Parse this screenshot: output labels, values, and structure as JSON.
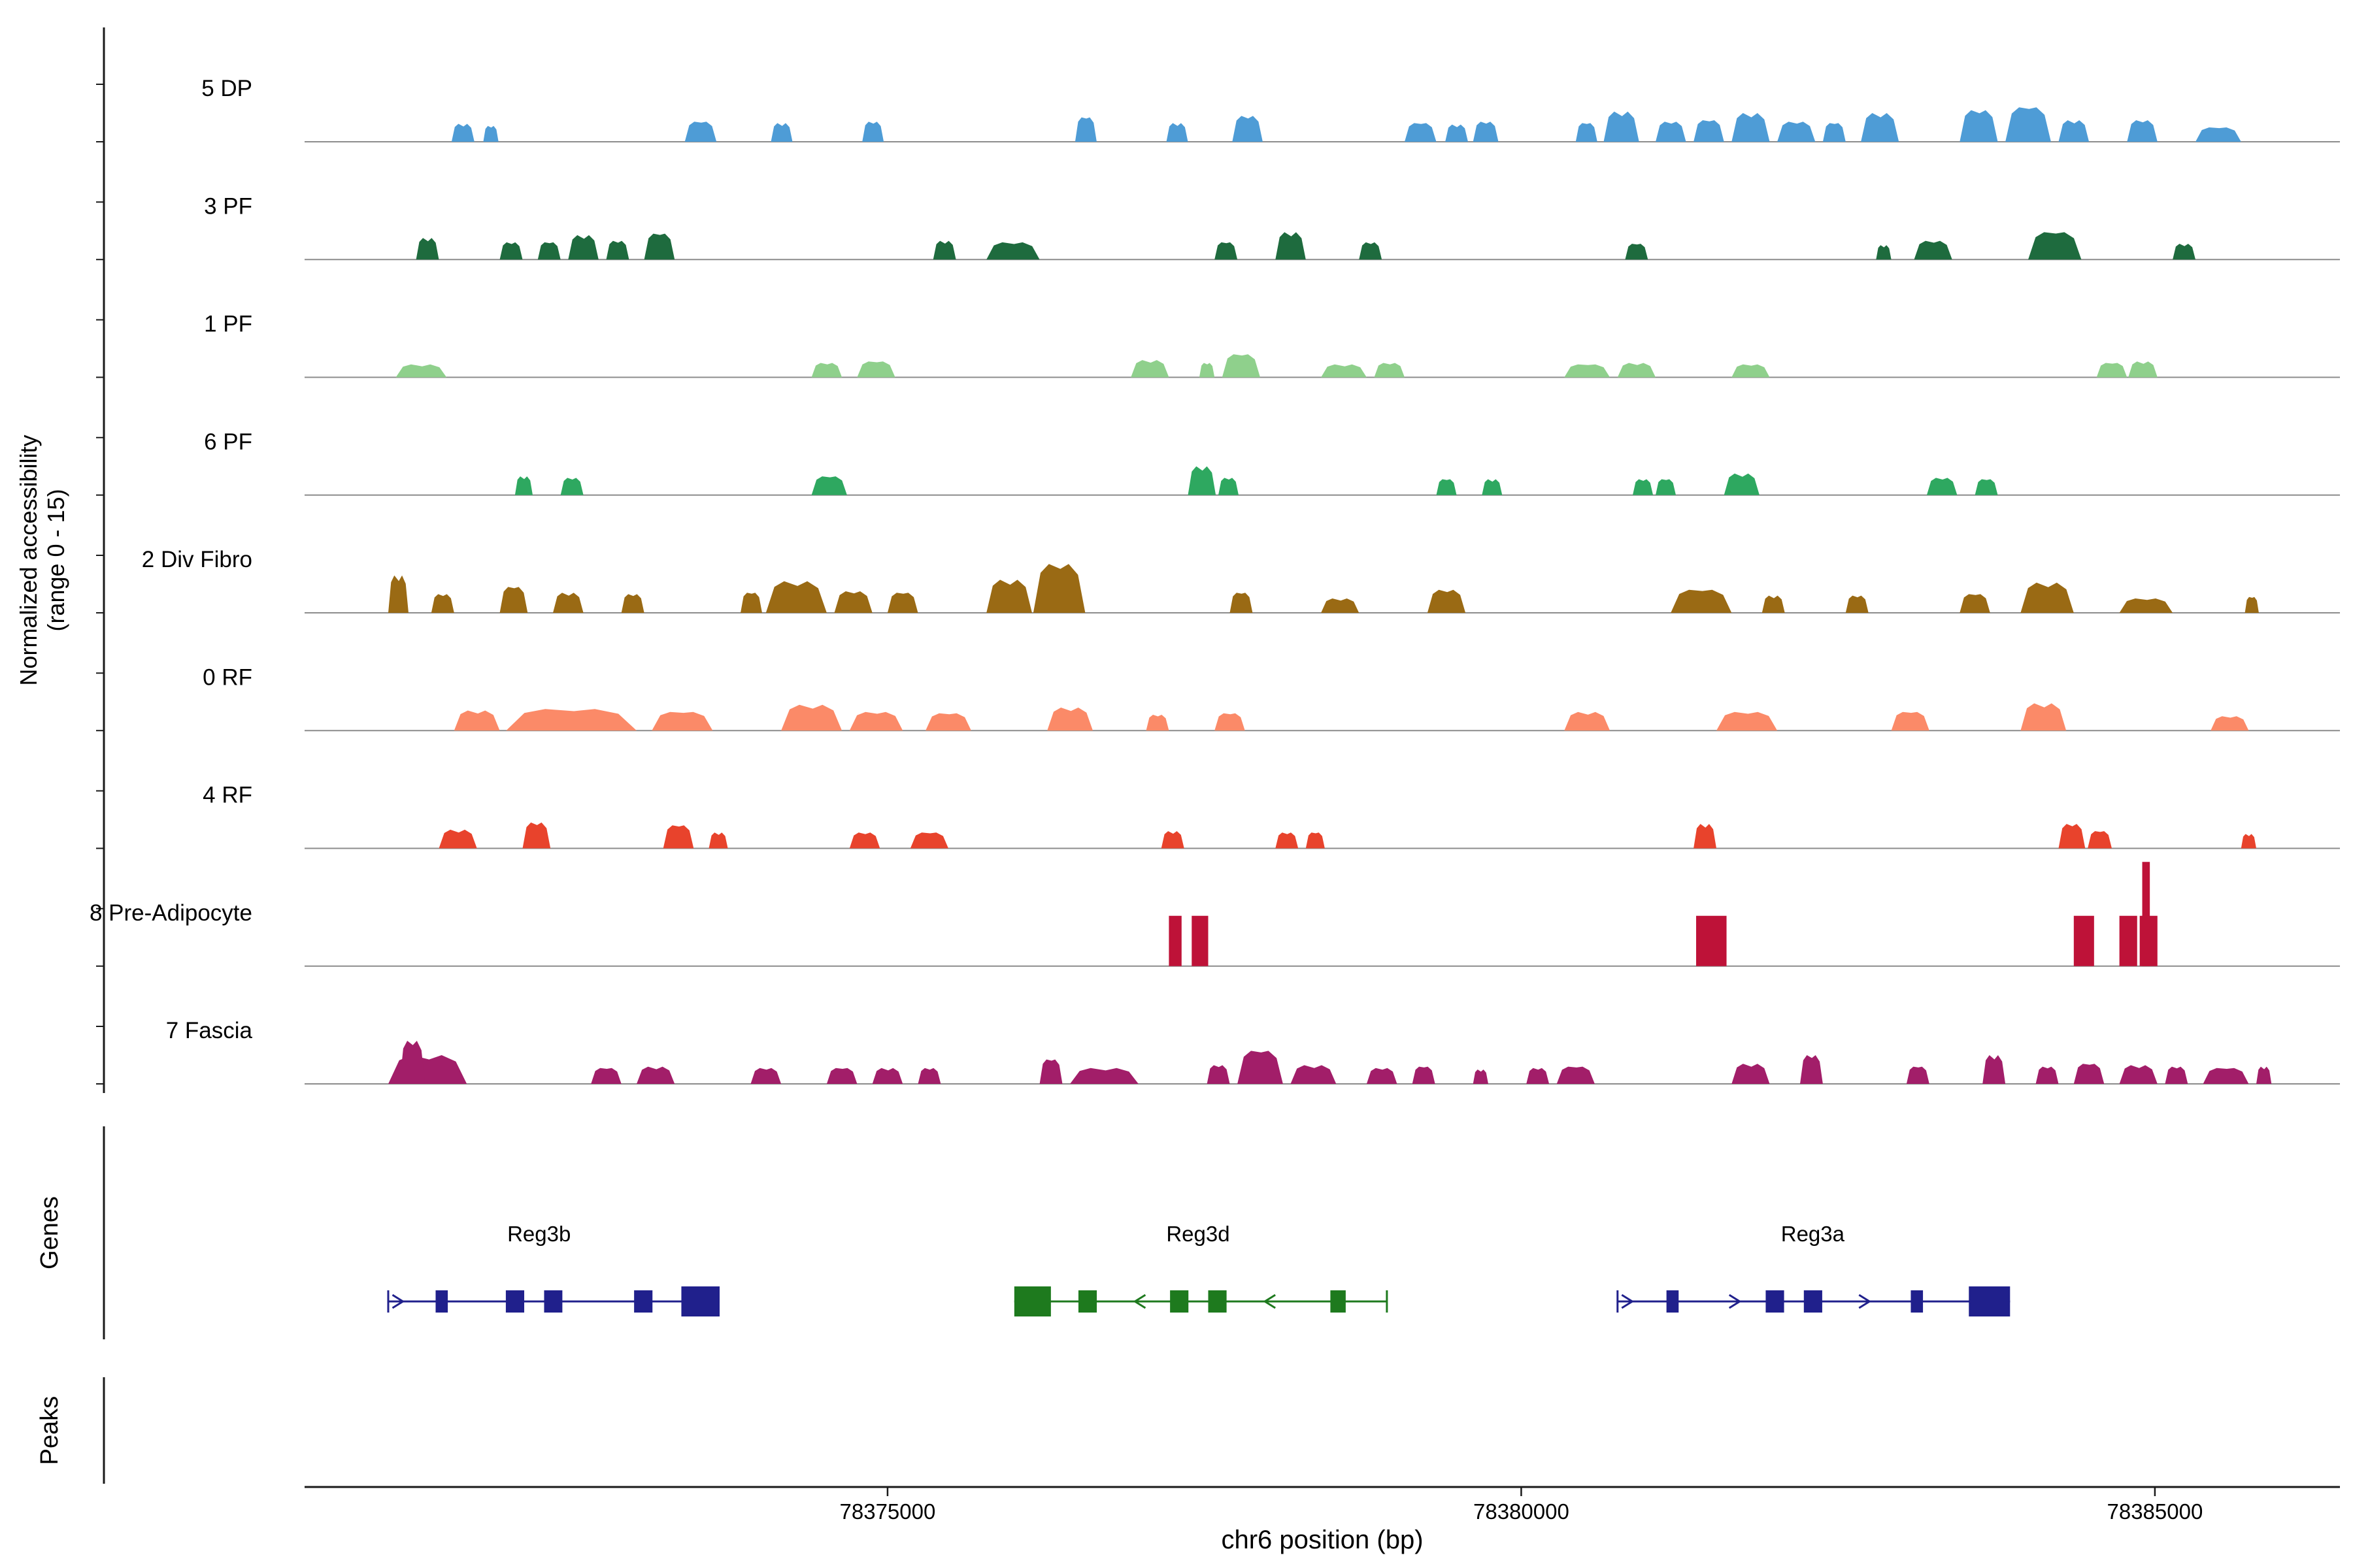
{
  "sections": {
    "accessibility": {
      "label_line1": "Normalized accessibility",
      "label_line2": "(range 0 - 15)"
    },
    "genes": {
      "label": "Genes"
    },
    "peaks": {
      "label": "Peaks"
    }
  },
  "axis": {
    "title": "chr6 position (bp)",
    "ticks": [
      {
        "bp": 78375000,
        "label": "78375000"
      },
      {
        "bp": 78380000,
        "label": "78380000"
      },
      {
        "bp": 78385000,
        "label": "78385000"
      }
    ]
  },
  "colors": {
    "baseline": "#8C8C8C",
    "axis": "#1A1A1A",
    "bracket": "#1A1A1A"
  },
  "chart_data": {
    "type": "area",
    "xlabel": "chr6 position (bp)",
    "xlim": [
      78370400,
      78386460
    ],
    "ylim_per_track": [
      0,
      15
    ],
    "x_ticks": [
      78375000,
      78380000,
      78385000
    ],
    "tracks": [
      {
        "name": "5 DP",
        "color": "#4E9CD6",
        "shape": "mound",
        "segments": [
          [
            78371560,
            78371740,
            2.5
          ],
          [
            78371810,
            78371930,
            2.2
          ],
          [
            78373400,
            78373650,
            2.8
          ],
          [
            78374080,
            78374250,
            2.6
          ],
          [
            78374800,
            78374970,
            2.8
          ],
          [
            78376480,
            78376650,
            3.4
          ],
          [
            78377200,
            78377370,
            2.6
          ],
          [
            78377720,
            78377960,
            3.6
          ],
          [
            78379080,
            78379330,
            2.6
          ],
          [
            78379400,
            78379580,
            2.4
          ],
          [
            78379620,
            78379820,
            2.8
          ],
          [
            78380430,
            78380600,
            2.6
          ],
          [
            78380650,
            78380930,
            4.2
          ],
          [
            78381060,
            78381300,
            2.8
          ],
          [
            78381360,
            78381600,
            3.0
          ],
          [
            78381660,
            78381960,
            4.0
          ],
          [
            78382020,
            78382320,
            2.8
          ],
          [
            78382380,
            78382560,
            2.6
          ],
          [
            78382680,
            78382980,
            4.0
          ],
          [
            78383460,
            78383760,
            4.4
          ],
          [
            78383820,
            78384180,
            4.8
          ],
          [
            78384240,
            78384480,
            3.0
          ],
          [
            78384780,
            78385020,
            3.0
          ],
          [
            78385320,
            78385680,
            2.0
          ]
        ]
      },
      {
        "name": "3 PF",
        "color": "#1E6B3E",
        "shape": "mound",
        "segments": [
          [
            78371280,
            78371460,
            3.0
          ],
          [
            78371940,
            78372120,
            2.4
          ],
          [
            78372240,
            78372420,
            2.4
          ],
          [
            78372480,
            78372720,
            3.4
          ],
          [
            78372780,
            78372960,
            2.6
          ],
          [
            78373080,
            78373320,
            3.6
          ],
          [
            78375360,
            78375540,
            2.6
          ],
          [
            78375780,
            78376200,
            2.4
          ],
          [
            78377580,
            78377760,
            2.4
          ],
          [
            78378060,
            78378300,
            3.8
          ],
          [
            78378720,
            78378900,
            2.4
          ],
          [
            78380820,
            78381000,
            2.2
          ],
          [
            78382800,
            78382920,
            2.0
          ],
          [
            78383100,
            78383400,
            2.6
          ],
          [
            78384000,
            78384420,
            3.8
          ],
          [
            78385140,
            78385320,
            2.2
          ]
        ]
      },
      {
        "name": "1 PF",
        "color": "#8FD08C",
        "shape": "mound",
        "segments": [
          [
            78371120,
            78371520,
            1.8
          ],
          [
            78374400,
            78374640,
            2.0
          ],
          [
            78374760,
            78375060,
            2.2
          ],
          [
            78376920,
            78377220,
            2.4
          ],
          [
            78377460,
            78377580,
            2.0
          ],
          [
            78377640,
            78377940,
            3.2
          ],
          [
            78378420,
            78378780,
            1.8
          ],
          [
            78378840,
            78379080,
            2.0
          ],
          [
            78380340,
            78380700,
            1.8
          ],
          [
            78380760,
            78381060,
            2.0
          ],
          [
            78381660,
            78381960,
            1.8
          ],
          [
            78384540,
            78384780,
            2.0
          ],
          [
            78384790,
            78385020,
            2.2
          ]
        ]
      },
      {
        "name": "6 PF",
        "color": "#2EA860",
        "shape": "mound",
        "segments": [
          [
            78372060,
            78372200,
            2.6
          ],
          [
            78372420,
            78372600,
            2.4
          ],
          [
            78374400,
            78374680,
            2.6
          ],
          [
            78377370,
            78377590,
            4.0
          ],
          [
            78377610,
            78377770,
            2.4
          ],
          [
            78379330,
            78379490,
            2.2
          ],
          [
            78379690,
            78379850,
            2.2
          ],
          [
            78380880,
            78381040,
            2.2
          ],
          [
            78381060,
            78381220,
            2.2
          ],
          [
            78381600,
            78381880,
            3.0
          ],
          [
            78383200,
            78383440,
            2.4
          ],
          [
            78383580,
            78383760,
            2.2
          ]
        ]
      },
      {
        "name": "2 Div Fibro",
        "color": "#9A6A14",
        "shape": "mound",
        "segments": [
          [
            78371060,
            78371220,
            5.2
          ],
          [
            78371400,
            78371580,
            2.6
          ],
          [
            78371940,
            78372160,
            3.6
          ],
          [
            78372360,
            78372600,
            2.8
          ],
          [
            78372900,
            78373080,
            2.6
          ],
          [
            78373840,
            78374010,
            2.8
          ],
          [
            78374040,
            78374520,
            4.4
          ],
          [
            78374580,
            78374880,
            3.0
          ],
          [
            78375000,
            78375240,
            2.8
          ],
          [
            78375780,
            78376140,
            4.6
          ],
          [
            78376150,
            78376560,
            6.8
          ],
          [
            78377700,
            78377880,
            2.8
          ],
          [
            78378420,
            78378720,
            2.0
          ],
          [
            78379260,
            78379560,
            3.2
          ],
          [
            78381180,
            78381660,
            3.2
          ],
          [
            78381900,
            78382080,
            2.4
          ],
          [
            78382560,
            78382740,
            2.4
          ],
          [
            78383460,
            78383700,
            2.6
          ],
          [
            78383940,
            78384360,
            4.2
          ],
          [
            78384720,
            78385140,
            2.0
          ],
          [
            78385710,
            78385820,
            2.2
          ]
        ]
      },
      {
        "name": "0 RF",
        "color": "#FB8A68",
        "shape": "mound",
        "segments": [
          [
            78371580,
            78371940,
            2.8
          ],
          [
            78371990,
            78373020,
            3.0
          ],
          [
            78373140,
            78373620,
            2.6
          ],
          [
            78374160,
            78374640,
            3.6
          ],
          [
            78374700,
            78375120,
            2.6
          ],
          [
            78375300,
            78375660,
            2.4
          ],
          [
            78376260,
            78376620,
            3.2
          ],
          [
            78377040,
            78377220,
            2.2
          ],
          [
            78377580,
            78377820,
            2.4
          ],
          [
            78380340,
            78380700,
            2.6
          ],
          [
            78381540,
            78382020,
            2.6
          ],
          [
            78382920,
            78383220,
            2.6
          ],
          [
            78383940,
            78384300,
            3.8
          ],
          [
            78385440,
            78385740,
            2.0
          ]
        ]
      },
      {
        "name": "4 RF",
        "color": "#E8432C",
        "shape": "mound",
        "segments": [
          [
            78371460,
            78371760,
            2.6
          ],
          [
            78372120,
            78372340,
            3.6
          ],
          [
            78373230,
            78373470,
            3.2
          ],
          [
            78373590,
            78373740,
            2.2
          ],
          [
            78374700,
            78374940,
            2.2
          ],
          [
            78375180,
            78375480,
            2.2
          ],
          [
            78377160,
            78377340,
            2.4
          ],
          [
            78378060,
            78378240,
            2.2
          ],
          [
            78378300,
            78378450,
            2.2
          ],
          [
            78381360,
            78381540,
            3.4
          ],
          [
            78384240,
            78384450,
            3.4
          ],
          [
            78384470,
            78384660,
            2.4
          ],
          [
            78385680,
            78385800,
            2.0
          ]
        ]
      },
      {
        "name": "8 Pre-Adipocyte",
        "color": "#BE1238",
        "shape": "rect",
        "segments": [
          [
            78377220,
            78377320,
            7.0
          ],
          [
            78377400,
            78377530,
            7.0
          ],
          [
            78381380,
            78381620,
            7.0
          ],
          [
            78384360,
            78384520,
            7.0
          ],
          [
            78384720,
            78384860,
            7.0
          ],
          [
            78384880,
            78385020,
            7.0
          ],
          [
            78384900,
            78384960,
            14.5
          ]
        ]
      },
      {
        "name": "7 Fascia",
        "color": "#A21E69",
        "shape": "mound",
        "segments": [
          [
            78371060,
            78371680,
            4.0
          ],
          [
            78371150,
            78371350,
            6.0
          ],
          [
            78372660,
            78372900,
            2.2
          ],
          [
            78373020,
            78373320,
            2.4
          ],
          [
            78373920,
            78374160,
            2.2
          ],
          [
            78374520,
            78374760,
            2.2
          ],
          [
            78374880,
            78375120,
            2.2
          ],
          [
            78375240,
            78375420,
            2.2
          ],
          [
            78376200,
            78376380,
            3.4
          ],
          [
            78376440,
            78376980,
            2.2
          ],
          [
            78377520,
            78377700,
            2.6
          ],
          [
            78377760,
            78378120,
            4.6
          ],
          [
            78378180,
            78378540,
            2.6
          ],
          [
            78378780,
            78379020,
            2.2
          ],
          [
            78379140,
            78379320,
            2.4
          ],
          [
            78379620,
            78379740,
            2.0
          ],
          [
            78380040,
            78380220,
            2.2
          ],
          [
            78380280,
            78380580,
            2.4
          ],
          [
            78381660,
            78381960,
            2.8
          ],
          [
            78382200,
            78382380,
            4.0
          ],
          [
            78383040,
            78383220,
            2.4
          ],
          [
            78383640,
            78383820,
            4.0
          ],
          [
            78384060,
            78384240,
            2.4
          ],
          [
            78384360,
            78384600,
            2.8
          ],
          [
            78384720,
            78385020,
            2.6
          ],
          [
            78385080,
            78385260,
            2.4
          ],
          [
            78385380,
            78385740,
            2.2
          ],
          [
            78385800,
            78385920,
            2.4
          ]
        ]
      }
    ],
    "genes": [
      {
        "name": "Reg3b",
        "color": "#20208C",
        "strand": "+",
        "start": 78371060,
        "end": 78373675,
        "label_bp": 78372250,
        "terminal_bar_bp": 78371060,
        "arrows": [
          [
            78371140,
            1
          ]
        ],
        "exons": [
          [
            78371434,
            78371530,
            1
          ],
          [
            78371988,
            78372133,
            1
          ],
          [
            78372290,
            78372434,
            1
          ],
          [
            78373000,
            78373145,
            1
          ],
          [
            78373373,
            78373675,
            2
          ]
        ]
      },
      {
        "name": "Reg3d",
        "color": "#1E7A1E",
        "strand": "-",
        "start": 78376000,
        "end": 78378940,
        "label_bp": 78377450,
        "terminal_bar_bp": 78378940,
        "arrows": [
          [
            78376988,
            -1
          ],
          [
            78378013,
            -1
          ]
        ],
        "exons": [
          [
            78376000,
            78376289,
            2
          ],
          [
            78376506,
            78376651,
            1
          ],
          [
            78377229,
            78377374,
            1
          ],
          [
            78377530,
            78377675,
            1
          ],
          [
            78378494,
            78378615,
            1
          ]
        ]
      },
      {
        "name": "Reg3a",
        "color": "#20208C",
        "strand": "+",
        "start": 78380760,
        "end": 78383857,
        "label_bp": 78382300,
        "terminal_bar_bp": 78380760,
        "arrows": [
          [
            78380840,
            1
          ],
          [
            78381688,
            1
          ],
          [
            78382712,
            1
          ]
        ],
        "exons": [
          [
            78381146,
            78381242,
            1
          ],
          [
            78381929,
            78382074,
            1
          ],
          [
            78382230,
            78382375,
            1
          ],
          [
            78383074,
            78383170,
            1
          ],
          [
            78383532,
            78383857,
            2
          ]
        ]
      }
    ],
    "peaks": []
  }
}
